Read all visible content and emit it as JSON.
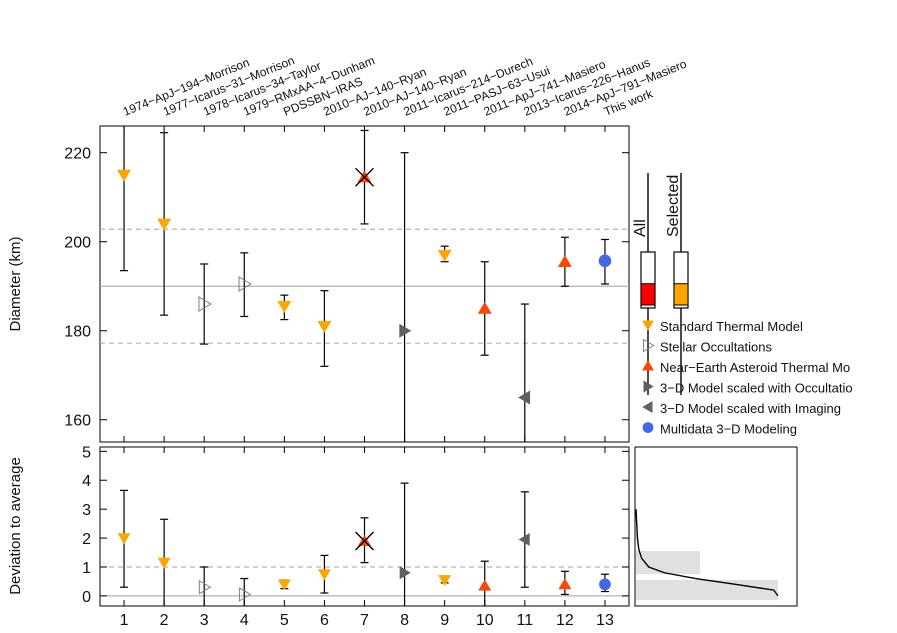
{
  "chart_data": [
    {
      "type": "scatter",
      "panel": "diameter",
      "ylabel": "Diameter (km)",
      "ylim": [
        155,
        226
      ],
      "yticks": [
        160,
        180,
        200,
        220
      ],
      "xlim": [
        0.4,
        13.6
      ],
      "reference": {
        "mean": 190,
        "lower": 177.2,
        "upper": 202.8
      },
      "x_top_labels": [
        "1974−ApJ−194−Morrison",
        "1977−Icarus−31−Morrison",
        "1978−Icarus−34−Taylor",
        "1979−RMxAA−4−Dunham",
        "PDSSBN−IRAS",
        "2010−AJ−140−Ryan",
        "2010−AJ−140−Ryan",
        "2011−Icarus−214−Durech",
        "2011−PASJ−63−Usui",
        "2011−ApJ−741−Masiero",
        "2013−Icarus−226−Hanus",
        "2014−ApJ−791−Masiero",
        "This work"
      ],
      "points": [
        {
          "x": 1,
          "y": 215.0,
          "lo": 193.5,
          "hi": 226,
          "method": "stm"
        },
        {
          "x": 2,
          "y": 204.0,
          "lo": 183.5,
          "hi": 224.5,
          "method": "stm"
        },
        {
          "x": 3,
          "y": 186.0,
          "lo": 177.0,
          "hi": 195.0,
          "method": "occ"
        },
        {
          "x": 4,
          "y": 190.5,
          "lo": 183.2,
          "hi": 197.5,
          "method": "occ"
        },
        {
          "x": 5,
          "y": 185.5,
          "lo": 182.5,
          "hi": 188.0,
          "method": "stm"
        },
        {
          "x": 6,
          "y": 181.0,
          "lo": 172.0,
          "hi": 189.0,
          "method": "stm"
        },
        {
          "x": 7,
          "y": 214.5,
          "lo": 204.0,
          "hi": 225.0,
          "method": "neatm",
          "rejected": true
        },
        {
          "x": 8,
          "y": 180.0,
          "lo": 155,
          "hi": 220.0,
          "method": "model_occ"
        },
        {
          "x": 9,
          "y": 197.0,
          "lo": 195.5,
          "hi": 199.0,
          "method": "stm"
        },
        {
          "x": 10,
          "y": 185.0,
          "lo": 174.5,
          "hi": 195.5,
          "method": "neatm"
        },
        {
          "x": 11,
          "y": 165.0,
          "lo": 155,
          "hi": 186.0,
          "method": "model_img"
        },
        {
          "x": 12,
          "y": 195.5,
          "lo": 190.0,
          "hi": 201.0,
          "method": "neatm"
        },
        {
          "x": 13,
          "y": 195.7,
          "lo": 190.5,
          "hi": 200.5,
          "method": "multidata"
        }
      ]
    },
    {
      "type": "scatter",
      "panel": "deviation",
      "ylabel": "Deviation to average",
      "ylim": [
        -0.35,
        5.15
      ],
      "yticks": [
        0,
        1,
        2,
        3,
        4,
        5
      ],
      "xticks": [
        1,
        2,
        3,
        4,
        5,
        6,
        7,
        8,
        9,
        10,
        11,
        12,
        13
      ],
      "reference": {
        "zero": 0,
        "one": 1
      },
      "points": [
        {
          "x": 1,
          "y": 2.0,
          "lo": 0.3,
          "hi": 3.65,
          "method": "stm"
        },
        {
          "x": 2,
          "y": 1.15,
          "lo": -0.35,
          "hi": 2.65,
          "method": "stm"
        },
        {
          "x": 3,
          "y": 0.3,
          "lo": -0.4,
          "hi": 1.0,
          "method": "occ"
        },
        {
          "x": 4,
          "y": 0.05,
          "lo": -0.4,
          "hi": 0.6,
          "method": "occ"
        },
        {
          "x": 5,
          "y": 0.4,
          "lo": 0.25,
          "hi": 0.55,
          "method": "stm"
        },
        {
          "x": 6,
          "y": 0.75,
          "lo": 0.1,
          "hi": 1.4,
          "method": "stm"
        },
        {
          "x": 7,
          "y": 1.9,
          "lo": 1.15,
          "hi": 2.7,
          "method": "neatm",
          "rejected": true
        },
        {
          "x": 8,
          "y": 0.8,
          "lo": -0.35,
          "hi": 3.9,
          "method": "model_occ"
        },
        {
          "x": 9,
          "y": 0.55,
          "lo": 0.45,
          "hi": 0.65,
          "method": "stm"
        },
        {
          "x": 10,
          "y": 0.35,
          "lo": -0.4,
          "hi": 1.2,
          "method": "neatm"
        },
        {
          "x": 11,
          "y": 1.95,
          "lo": 0.3,
          "hi": 3.6,
          "method": "model_img"
        },
        {
          "x": 12,
          "y": 0.4,
          "lo": 0.05,
          "hi": 0.85,
          "method": "neatm"
        },
        {
          "x": 13,
          "y": 0.4,
          "lo": 0.15,
          "hi": 0.75,
          "method": "multidata"
        }
      ]
    },
    {
      "type": "area",
      "panel": "deviation-distribution",
      "description_values": {
        "bins": [
          {
            "from": -0.15,
            "to": 0.55,
            "relative_height": 1.0
          },
          {
            "from": 0.75,
            "to": 1.55,
            "relative_height": 0.45
          }
        ],
        "curve": [
          [
            0.0,
            1.0
          ],
          [
            0.2,
            0.97
          ],
          [
            0.4,
            0.7
          ],
          [
            0.6,
            0.42
          ],
          [
            0.8,
            0.2
          ],
          [
            1.0,
            0.09
          ],
          [
            1.3,
            0.04
          ],
          [
            1.6,
            0.02
          ],
          [
            2.0,
            0.01
          ],
          [
            2.5,
            0.005
          ],
          [
            3.0,
            0.0
          ]
        ]
      }
    }
  ],
  "boxes": {
    "all": {
      "label": "All",
      "fill_fraction": 0.38,
      "color": "#ff0000"
    },
    "selected": {
      "label": "Selected",
      "fill_fraction": 0.38,
      "color": "#ffa500"
    }
  },
  "legend": [
    {
      "key": "stm",
      "label": "Standard Thermal Model",
      "marker": "triangle-down",
      "color": "#ffa500"
    },
    {
      "key": "occ",
      "label": "Stellar Occultations",
      "marker": "triangle-right-open",
      "color": "#808080"
    },
    {
      "key": "neatm",
      "label": "Near−Earth Asteroid Thermal Mo",
      "marker": "triangle-up",
      "color": "#ff4500"
    },
    {
      "key": "model_occ",
      "label": "3−D Model scaled with Occultatio",
      "marker": "triangle-right",
      "color": "#606060"
    },
    {
      "key": "model_img",
      "label": "3−D Model scaled with Imaging",
      "marker": "triangle-left",
      "color": "#606060"
    },
    {
      "key": "multidata",
      "label": "Multidata 3−D Modeling",
      "marker": "circle",
      "color": "#4169e1"
    }
  ],
  "colors": {
    "stm": "#ffa500",
    "occ": "#808080",
    "neatm": "#ff4500",
    "model": "#606060",
    "multidata": "#4169e1",
    "rejected": "#000000",
    "ref": "#b3b3b3",
    "axis": "#000000",
    "hist": "#e0e0e0"
  }
}
